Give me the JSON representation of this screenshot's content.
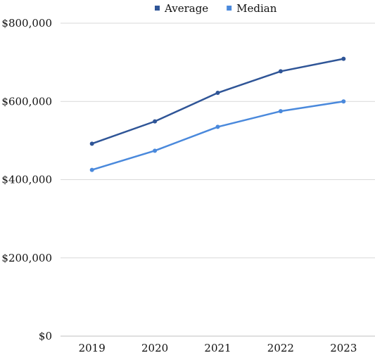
{
  "chart_data": {
    "type": "line",
    "title": "",
    "xlabel": "",
    "ylabel": "",
    "categories": [
      "2019",
      "2020",
      "2021",
      "2022",
      "2023"
    ],
    "ylim": [
      0,
      800000
    ],
    "y_ticks": [
      0,
      200000,
      400000,
      600000,
      800000
    ],
    "y_tick_labels": [
      "$0",
      "$200,000",
      "$400,000",
      "$600,000",
      "$800,000"
    ],
    "grid": true,
    "legend_position": "top-center",
    "series": [
      {
        "name": "Average",
        "color": "#2f5597",
        "values": [
          492000,
          549000,
          622000,
          677000,
          709000
        ]
      },
      {
        "name": "Median",
        "color": "#4a89dc",
        "values": [
          425000,
          474000,
          535000,
          575000,
          600000
        ]
      }
    ]
  }
}
